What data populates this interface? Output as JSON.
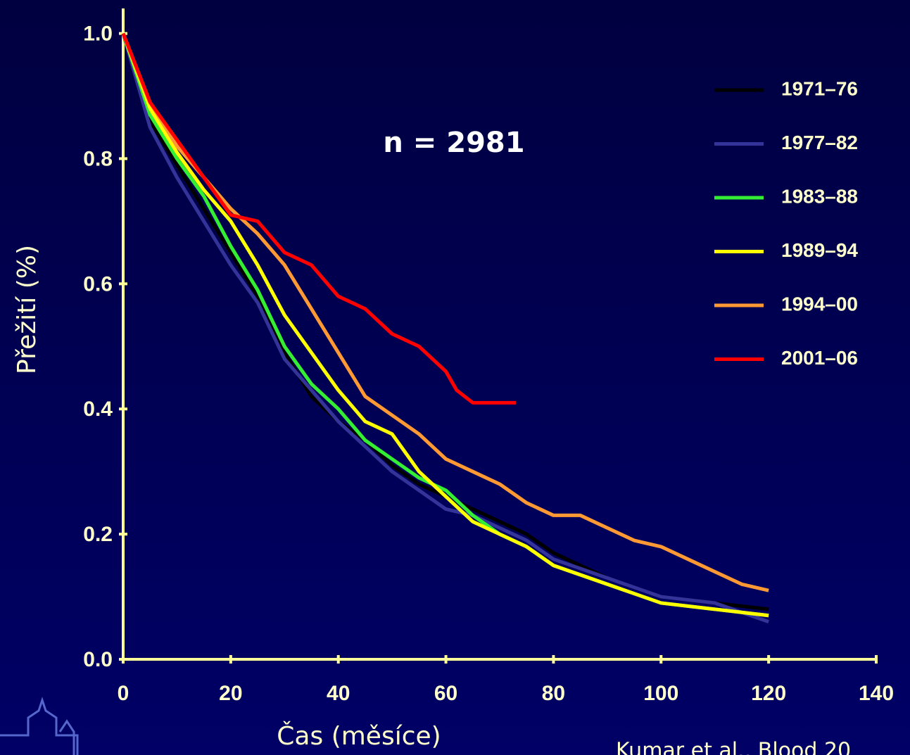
{
  "chart_data": {
    "type": "line",
    "annotation": "n = 2981",
    "x_label": "Čas (měsíce)",
    "y_label": "Přežití (%)",
    "source": "Kumar et al., Blood 20",
    "xlim": [
      0,
      140
    ],
    "xticks": [
      0,
      20,
      40,
      60,
      80,
      100,
      120,
      140
    ],
    "ylim": [
      0,
      1.04
    ],
    "yticks": [
      {
        "value": 0,
        "label": "0.0"
      },
      0.2,
      0.4,
      0.6,
      0.8,
      {
        "value": 1,
        "label": "1.0"
      }
    ],
    "series": [
      {
        "name": "1971–76",
        "color": "#000000",
        "x": [
          0,
          5,
          10,
          15,
          20,
          25,
          30,
          35,
          40,
          45,
          50,
          55,
          60,
          65,
          70,
          75,
          80,
          90,
          100,
          110,
          120
        ],
        "values": [
          1,
          0.86,
          0.79,
          0.72,
          0.65,
          0.58,
          0.49,
          0.42,
          0.38,
          0.35,
          0.31,
          0.28,
          0.26,
          0.24,
          0.22,
          0.2,
          0.17,
          0.13,
          0.1,
          0.09,
          0.08
        ]
      },
      {
        "name": "1977–82",
        "color": "#333399",
        "x": [
          0,
          5,
          10,
          15,
          20,
          25,
          30,
          35,
          40,
          45,
          50,
          55,
          60,
          65,
          70,
          75,
          80,
          90,
          100,
          110,
          120
        ],
        "values": [
          1,
          0.85,
          0.77,
          0.7,
          0.63,
          0.57,
          0.48,
          0.43,
          0.38,
          0.34,
          0.3,
          0.27,
          0.24,
          0.23,
          0.21,
          0.19,
          0.16,
          0.13,
          0.1,
          0.09,
          0.06
        ]
      },
      {
        "name": "1983–88",
        "color": "#33ee33",
        "x": [
          0,
          5,
          10,
          15,
          20,
          25,
          30,
          35,
          40,
          45,
          50,
          55,
          60,
          65,
          70,
          75,
          80,
          90,
          100,
          110,
          120
        ],
        "values": [
          1,
          0.87,
          0.8,
          0.74,
          0.66,
          0.59,
          0.5,
          0.44,
          0.4,
          0.35,
          0.32,
          0.29,
          0.27,
          0.23,
          0.2,
          0.18,
          0.15,
          0.12,
          0.09,
          0.08,
          0.07
        ]
      },
      {
        "name": "1989–94",
        "color": "#ffff00",
        "x": [
          0,
          5,
          10,
          15,
          20,
          25,
          30,
          35,
          40,
          45,
          50,
          55,
          60,
          65,
          70,
          75,
          80,
          90,
          100,
          110,
          120
        ],
        "values": [
          1,
          0.88,
          0.81,
          0.75,
          0.7,
          0.63,
          0.55,
          0.49,
          0.43,
          0.38,
          0.36,
          0.3,
          0.26,
          0.22,
          0.2,
          0.18,
          0.15,
          0.12,
          0.09,
          0.08,
          0.07
        ]
      },
      {
        "name": "1994–00",
        "color": "#ff9933",
        "x": [
          0,
          5,
          10,
          15,
          20,
          25,
          30,
          35,
          40,
          45,
          50,
          55,
          60,
          65,
          70,
          75,
          80,
          85,
          90,
          95,
          100,
          105,
          110,
          115,
          120
        ],
        "values": [
          1,
          0.89,
          0.82,
          0.77,
          0.72,
          0.68,
          0.63,
          0.56,
          0.49,
          0.42,
          0.39,
          0.36,
          0.32,
          0.3,
          0.28,
          0.25,
          0.23,
          0.23,
          0.21,
          0.19,
          0.18,
          0.16,
          0.14,
          0.12,
          0.11
        ]
      },
      {
        "name": "2001–06",
        "color": "#ff0000",
        "x": [
          0,
          5,
          10,
          15,
          20,
          25,
          30,
          35,
          40,
          45,
          50,
          55,
          60,
          62,
          65,
          73
        ],
        "values": [
          1,
          0.89,
          0.83,
          0.77,
          0.71,
          0.7,
          0.65,
          0.63,
          0.58,
          0.56,
          0.52,
          0.5,
          0.46,
          0.43,
          0.41,
          0.41
        ]
      }
    ]
  }
}
